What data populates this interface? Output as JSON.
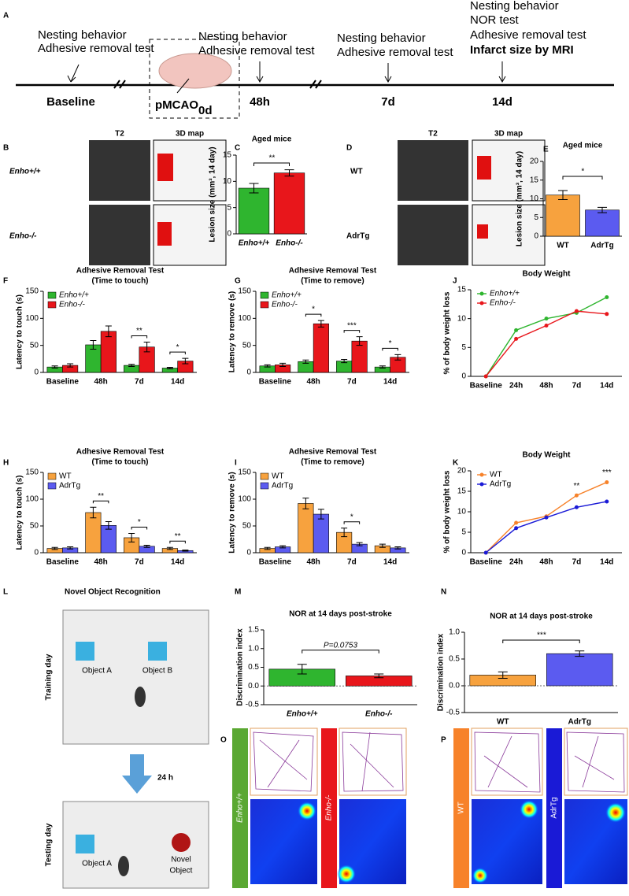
{
  "panel_labels": [
    "A",
    "B",
    "C",
    "D",
    "E",
    "F",
    "G",
    "J",
    "H",
    "I",
    "K",
    "L",
    "M",
    "N",
    "O",
    "P"
  ],
  "timeline": {
    "above": [
      [
        "Nesting behavior",
        "Adhesive removal test"
      ],
      [
        "Nesting behavior",
        "Adhesive removal test"
      ],
      [
        "Nesting behavior",
        "Adhesive removal test"
      ],
      [
        "Nesting behavior",
        "NOR test",
        "Adhesive removal test",
        "Infarct size by MRI"
      ]
    ],
    "labels": [
      "Baseline",
      "48h",
      "7d",
      "14d"
    ],
    "surgery": "pMCAO",
    "surgery_day": "0d"
  },
  "imaging": {
    "left_headers": [
      "T2",
      "3D map"
    ],
    "left_rows": [
      "Enho+/+",
      "Enho-/-"
    ],
    "right_headers": [
      "T2",
      "3D map"
    ],
    "right_rows": [
      "WT",
      "AdrTg"
    ]
  },
  "nor_panel": {
    "title": "Novel Object Recognition",
    "training": "Training day",
    "testing": "Testing day",
    "interval": "24 h",
    "object_a": "Object A",
    "object_b": "Object B",
    "novel": [
      "Novel",
      "Object"
    ]
  },
  "tracking": {
    "left": [
      "Enho+/+",
      "Enho-/-"
    ],
    "right": [
      "WT",
      "AdrTg"
    ]
  },
  "chart_data": [
    {
      "type": "bar",
      "title": [
        "Aged mice"
      ],
      "ylabel": "Lesion size (mm³, 14 day)",
      "categories": [
        "Enho+/+",
        "Enho-/-"
      ],
      "values": [
        8.7,
        11.6
      ],
      "errors": [
        0.9,
        0.6
      ],
      "colors": [
        "#2fb52f",
        "#e8161b"
      ],
      "ylim": [
        0,
        15
      ],
      "yticks": [
        0,
        5,
        10,
        15
      ],
      "annotation": "**"
    },
    {
      "type": "bar",
      "title": [
        "Aged mice"
      ],
      "ylabel": "Lesion size (mm³, 14 day)",
      "categories": [
        "WT",
        "AdrTg"
      ],
      "values": [
        11,
        7
      ],
      "errors": [
        1.2,
        0.7
      ],
      "colors": [
        "#f7a23e",
        "#5b5bf0"
      ],
      "ylim": [
        0,
        20
      ],
      "yticks": [
        0,
        5,
        10,
        15,
        20
      ],
      "annotation": "*"
    },
    {
      "type": "grouped_bar",
      "title": [
        "Adhesive Removal Test",
        "(Time to touch)"
      ],
      "ylabel": "Latency to touch (s)",
      "categories": [
        "Baseline",
        "48h",
        "7d",
        "14d"
      ],
      "series": [
        {
          "name": "Enho+/+",
          "color": "#2fb52f",
          "values": [
            10,
            51,
            13,
            8
          ],
          "errors": [
            2,
            8,
            2,
            1.5
          ]
        },
        {
          "name": "Enho-/-",
          "color": "#e8161b",
          "values": [
            13,
            76,
            47,
            21
          ],
          "errors": [
            3,
            10,
            9,
            5
          ]
        }
      ],
      "ylim": [
        0,
        150
      ],
      "yticks": [
        0,
        50,
        100,
        150
      ],
      "sig": [
        null,
        null,
        "**",
        "*"
      ]
    },
    {
      "type": "grouped_bar",
      "title": [
        "Adhesive Removal Test",
        "(Time to remove)"
      ],
      "ylabel": "Latency to remove (s)",
      "categories": [
        "Baseline",
        "48h",
        "7d",
        "14d"
      ],
      "series": [
        {
          "name": "Enho+/+",
          "color": "#2fb52f",
          "values": [
            12,
            20,
            21,
            10
          ],
          "errors": [
            2,
            3,
            3,
            2
          ]
        },
        {
          "name": "Enho-/-",
          "color": "#e8161b",
          "values": [
            14,
            90,
            58,
            28
          ],
          "errors": [
            3,
            6,
            8,
            5
          ]
        }
      ],
      "ylim": [
        0,
        150
      ],
      "yticks": [
        0,
        50,
        100,
        150
      ],
      "sig": [
        null,
        "*",
        "***",
        "*"
      ]
    },
    {
      "type": "line",
      "title": [
        "Body Weight"
      ],
      "ylabel": "% of body weight loss",
      "categories": [
        "Baseline",
        "24h",
        "48h",
        "7d",
        "14d"
      ],
      "series": [
        {
          "name": "Enho+/+",
          "color": "#2fb52f",
          "values": [
            0,
            8,
            10,
            11,
            13.7
          ]
        },
        {
          "name": "Enho-/-",
          "color": "#e8161b",
          "values": [
            0,
            6.5,
            8.8,
            11.3,
            10.8
          ]
        }
      ],
      "ylim": [
        0,
        15
      ],
      "yticks": [
        0,
        5,
        10,
        15
      ]
    },
    {
      "type": "grouped_bar",
      "title": [
        "Adhesive Removal Test",
        "(Time to touch)"
      ],
      "ylabel": "Latency to touch (s)",
      "categories": [
        "Baseline",
        "48h",
        "7d",
        "14d"
      ],
      "series": [
        {
          "name": "WT",
          "color": "#f7a23e",
          "values": [
            8,
            75,
            28,
            8
          ],
          "errors": [
            2,
            10,
            8,
            2
          ]
        },
        {
          "name": "AdrTg",
          "color": "#5b5bf0",
          "values": [
            9,
            51,
            12,
            4
          ],
          "errors": [
            2,
            7,
            2,
            1
          ]
        }
      ],
      "ylim": [
        0,
        150
      ],
      "yticks": [
        0,
        50,
        100,
        150
      ],
      "sig": [
        null,
        "**",
        "*",
        "**"
      ]
    },
    {
      "type": "grouped_bar",
      "title": [
        "Adhesive Removal Test",
        "(Time to remove)"
      ],
      "ylabel": "Latency to remove (s)",
      "categories": [
        "Baseline",
        "48h",
        "7d",
        "14d"
      ],
      "series": [
        {
          "name": "WT",
          "color": "#f7a23e",
          "values": [
            8,
            92,
            38,
            13
          ],
          "errors": [
            2,
            10,
            8,
            3
          ]
        },
        {
          "name": "AdrTg",
          "color": "#5b5bf0",
          "values": [
            11,
            72,
            16,
            9
          ],
          "errors": [
            2,
            9,
            3,
            2
          ]
        }
      ],
      "ylim": [
        0,
        150
      ],
      "yticks": [
        0,
        50,
        100,
        150
      ],
      "sig": [
        null,
        null,
        "*",
        null
      ]
    },
    {
      "type": "line",
      "title": [
        "Body Weight"
      ],
      "ylabel": "% of body weight loss",
      "categories": [
        "Baseline",
        "24h",
        "48h",
        "7d",
        "14d"
      ],
      "series": [
        {
          "name": "WT",
          "color": "#f7822a",
          "values": [
            0,
            7.3,
            8.9,
            14,
            17.2
          ]
        },
        {
          "name": "AdrTg",
          "color": "#1a1ad6",
          "values": [
            0,
            6,
            8.6,
            11.1,
            12.5
          ]
        }
      ],
      "ylim": [
        0,
        20
      ],
      "yticks": [
        0,
        5,
        10,
        15,
        20
      ],
      "sig": [
        null,
        null,
        null,
        "**",
        "***"
      ]
    },
    {
      "type": "bar",
      "title": [
        "NOR at 14 days post-stroke"
      ],
      "ylabel": "Discrimination index",
      "categories": [
        "Enho+/+",
        "Enho-/-"
      ],
      "values": [
        0.45,
        0.27
      ],
      "errors": [
        0.13,
        0.05
      ],
      "colors": [
        "#2fb52f",
        "#e8161b"
      ],
      "ylim": [
        -0.5,
        1.5
      ],
      "yticks": [
        {
          "value": -0.5,
          "label": "-0.5"
        },
        {
          "value": 0,
          "label": "0.0"
        },
        {
          "value": 0.5,
          "label": "0.5"
        },
        {
          "value": 1,
          "label": "1.0"
        },
        {
          "value": 1.5,
          "label": "1.5"
        }
      ],
      "annotation": "P=0.0753"
    },
    {
      "type": "bar",
      "title": [
        "NOR at 14 days post-stroke"
      ],
      "ylabel": "Discrimination index",
      "categories": [
        "WT",
        "AdrTg"
      ],
      "values": [
        0.2,
        0.6
      ],
      "errors": [
        0.06,
        0.05
      ],
      "colors": [
        "#f7a23e",
        "#5b5bf0"
      ],
      "ylim": [
        -0.5,
        1.0
      ],
      "yticks": [
        {
          "value": -0.5,
          "label": "-0.5"
        },
        {
          "value": 0,
          "label": "0.0"
        },
        {
          "value": 0.5,
          "label": "0.5"
        },
        {
          "value": 1,
          "label": "1.0"
        }
      ],
      "annotation": "***"
    }
  ]
}
